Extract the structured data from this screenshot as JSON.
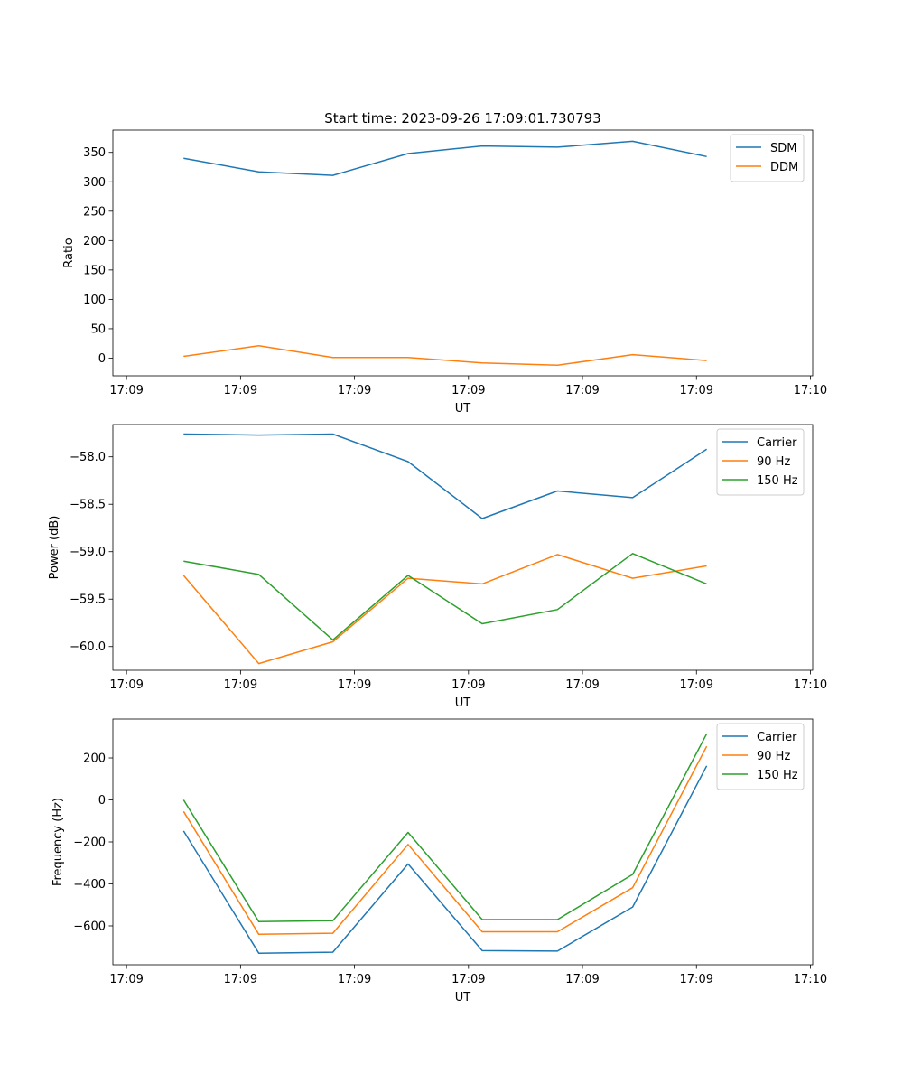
{
  "figure": {
    "title": "Start time: 2023-09-26 17:09:01.730793"
  },
  "chart_data": [
    {
      "type": "line",
      "title": "Start time: 2023-09-26 17:09:01.730793",
      "xlabel": "UT",
      "ylabel": "Ratio",
      "x": [
        0.5,
        1.16,
        1.81,
        2.47,
        3.12,
        3.78,
        4.44,
        5.09
      ],
      "xlim": [
        -0.12,
        6.02
      ],
      "xticks": [
        0,
        1,
        2,
        3,
        4,
        5,
        6
      ],
      "xtick_labels": [
        "17:09",
        "17:09",
        "17:09",
        "17:09",
        "17:09",
        "17:09",
        "17:10"
      ],
      "ylim": [
        -30,
        388
      ],
      "yticks": [
        0,
        50,
        100,
        150,
        200,
        250,
        300,
        350
      ],
      "ytick_labels": [
        "0",
        "50",
        "100",
        "150",
        "200",
        "250",
        "300",
        "350"
      ],
      "legend_position": "top-right",
      "grid": false,
      "series": [
        {
          "name": "SDM",
          "color": "#1f77b4",
          "values": [
            340,
            317,
            311,
            348,
            361,
            359,
            369,
            343
          ]
        },
        {
          "name": "DDM",
          "color": "#ff7f0e",
          "values": [
            3,
            21,
            1,
            1,
            -8,
            -12,
            6,
            -4
          ]
        }
      ]
    },
    {
      "type": "line",
      "title": "",
      "xlabel": "UT",
      "ylabel": "Power (dB)",
      "x": [
        0.5,
        1.16,
        1.81,
        2.47,
        3.12,
        3.78,
        4.44,
        5.09
      ],
      "xlim": [
        -0.12,
        6.02
      ],
      "xticks": [
        0,
        1,
        2,
        3,
        4,
        5,
        6
      ],
      "xtick_labels": [
        "17:09",
        "17:09",
        "17:09",
        "17:09",
        "17:09",
        "17:09",
        "17:10"
      ],
      "ylim": [
        -60.25,
        -57.66
      ],
      "yticks": [
        -60.0,
        -59.5,
        -59.0,
        -58.5,
        -58.0
      ],
      "ytick_labels": [
        "−60.0",
        "−59.5",
        "−59.0",
        "−58.5",
        "−58.0"
      ],
      "legend_position": "top-right",
      "grid": false,
      "series": [
        {
          "name": "Carrier",
          "color": "#1f77b4",
          "values": [
            -57.76,
            -57.77,
            -57.76,
            -58.05,
            -58.65,
            -58.36,
            -58.43,
            -57.92
          ]
        },
        {
          "name": "90 Hz",
          "color": "#ff7f0e",
          "values": [
            -59.25,
            -60.18,
            -59.95,
            -59.28,
            -59.34,
            -59.03,
            -59.28,
            -59.15
          ]
        },
        {
          "name": "150 Hz",
          "color": "#2ca02c",
          "values": [
            -59.1,
            -59.24,
            -59.93,
            -59.25,
            -59.76,
            -59.61,
            -59.02,
            -59.34
          ]
        }
      ]
    },
    {
      "type": "line",
      "title": "",
      "xlabel": "UT",
      "ylabel": "Frequency (Hz)",
      "x": [
        0.5,
        1.16,
        1.81,
        2.47,
        3.12,
        3.78,
        4.44,
        5.09
      ],
      "xlim": [
        -0.12,
        6.02
      ],
      "xticks": [
        0,
        1,
        2,
        3,
        4,
        5,
        6
      ],
      "xtick_labels": [
        "17:09",
        "17:09",
        "17:09",
        "17:09",
        "17:09",
        "17:09",
        "17:10"
      ],
      "ylim": [
        -785,
        385
      ],
      "yticks": [
        -600,
        -400,
        -200,
        0,
        200
      ],
      "ytick_labels": [
        "−600",
        "−400",
        "−200",
        "0",
        "200"
      ],
      "legend_position": "top-right",
      "grid": false,
      "series": [
        {
          "name": "Carrier",
          "color": "#1f77b4",
          "values": [
            -148,
            -730,
            -725,
            -305,
            -718,
            -720,
            -510,
            162
          ]
        },
        {
          "name": "90 Hz",
          "color": "#ff7f0e",
          "values": [
            -55,
            -640,
            -635,
            -212,
            -628,
            -628,
            -418,
            255
          ]
        },
        {
          "name": "150 Hz",
          "color": "#2ca02c",
          "values": [
            0,
            -580,
            -575,
            -155,
            -570,
            -570,
            -355,
            315
          ]
        }
      ]
    }
  ]
}
